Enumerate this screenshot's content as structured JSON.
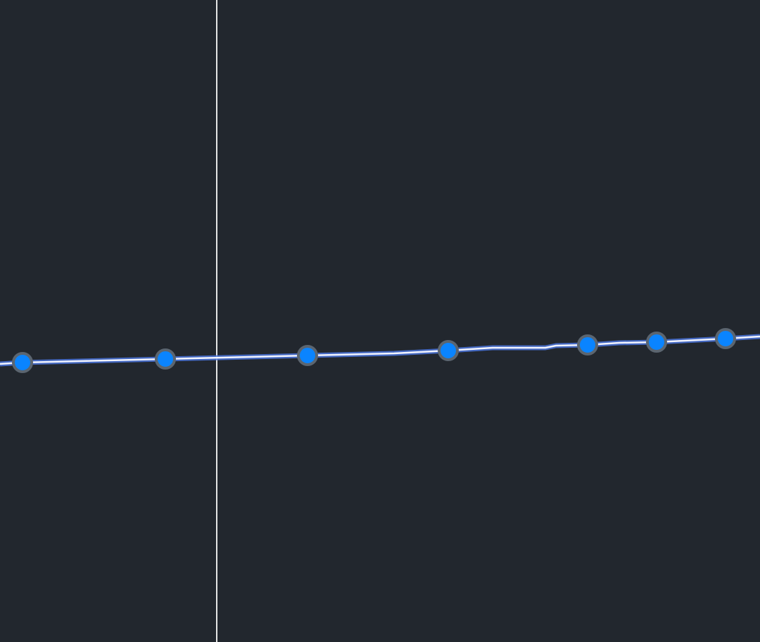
{
  "canvas": {
    "background_color": "#22272e",
    "guide_line_color": "#e6e6e6",
    "path_line_color": "#f2f4ff",
    "path_glow_color": "#4a74d9",
    "vertex_fill_color": "#0a84ff",
    "vertex_stroke_color": "#5b6570",
    "vertex_icon": "circle-handle-icon"
  }
}
